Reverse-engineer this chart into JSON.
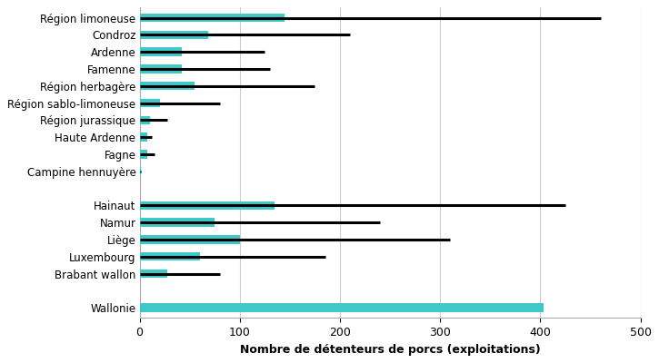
{
  "categories": [
    "Wallonie",
    " ",
    "Brabant wallon",
    "Luxembourg",
    "Liège",
    "Namur",
    "Hainaut",
    "",
    "Campine hennuyère",
    "Fagne",
    "Haute Ardenne",
    "Région jurassique",
    "Région sablo-limoneuse",
    "Région herbagère",
    "Famenne",
    "Ardenne",
    "Condroz",
    "Région limoneuse"
  ],
  "bar_values": [
    403,
    0,
    28,
    60,
    100,
    75,
    135,
    0,
    1,
    8,
    8,
    10,
    20,
    55,
    42,
    42,
    68,
    145
  ],
  "line_values": [
    null,
    null,
    80,
    185,
    310,
    240,
    425,
    null,
    1,
    15,
    12,
    28,
    80,
    175,
    130,
    125,
    210,
    460
  ],
  "bar_color": "#3EC8C8",
  "line_color": "#000000",
  "xlabel": "Nombre de détenteurs de porcs (exploitations)",
  "xlim": [
    0,
    500
  ],
  "xticks": [
    0,
    100,
    200,
    300,
    400,
    500
  ],
  "background_color": "#ffffff",
  "grid_color": "#cccccc",
  "bar_height": 0.5,
  "label_fontsize": 8.5,
  "xlabel_fontsize": 9
}
